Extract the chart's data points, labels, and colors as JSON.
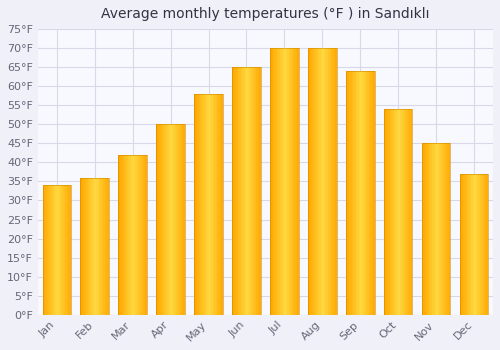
{
  "title": "Average monthly temperatures (°F ) in Sandıklı",
  "months": [
    "Jan",
    "Feb",
    "Mar",
    "Apr",
    "May",
    "Jun",
    "Jul",
    "Aug",
    "Sep",
    "Oct",
    "Nov",
    "Dec"
  ],
  "values": [
    34,
    36,
    42,
    50,
    58,
    65,
    70,
    70,
    64,
    54,
    45,
    37
  ],
  "bar_color_main": "#FFA800",
  "bar_color_light": "#FFD060",
  "bar_edge_color": "#CC8800",
  "background_color": "#f0f0f8",
  "plot_bg_color": "#f8f8ff",
  "grid_color": "#d8d8e8",
  "ylim": [
    0,
    75
  ],
  "yticks": [
    0,
    5,
    10,
    15,
    20,
    25,
    30,
    35,
    40,
    45,
    50,
    55,
    60,
    65,
    70,
    75
  ],
  "title_fontsize": 10,
  "tick_fontsize": 8,
  "tick_color": "#666677",
  "bar_width": 0.75
}
